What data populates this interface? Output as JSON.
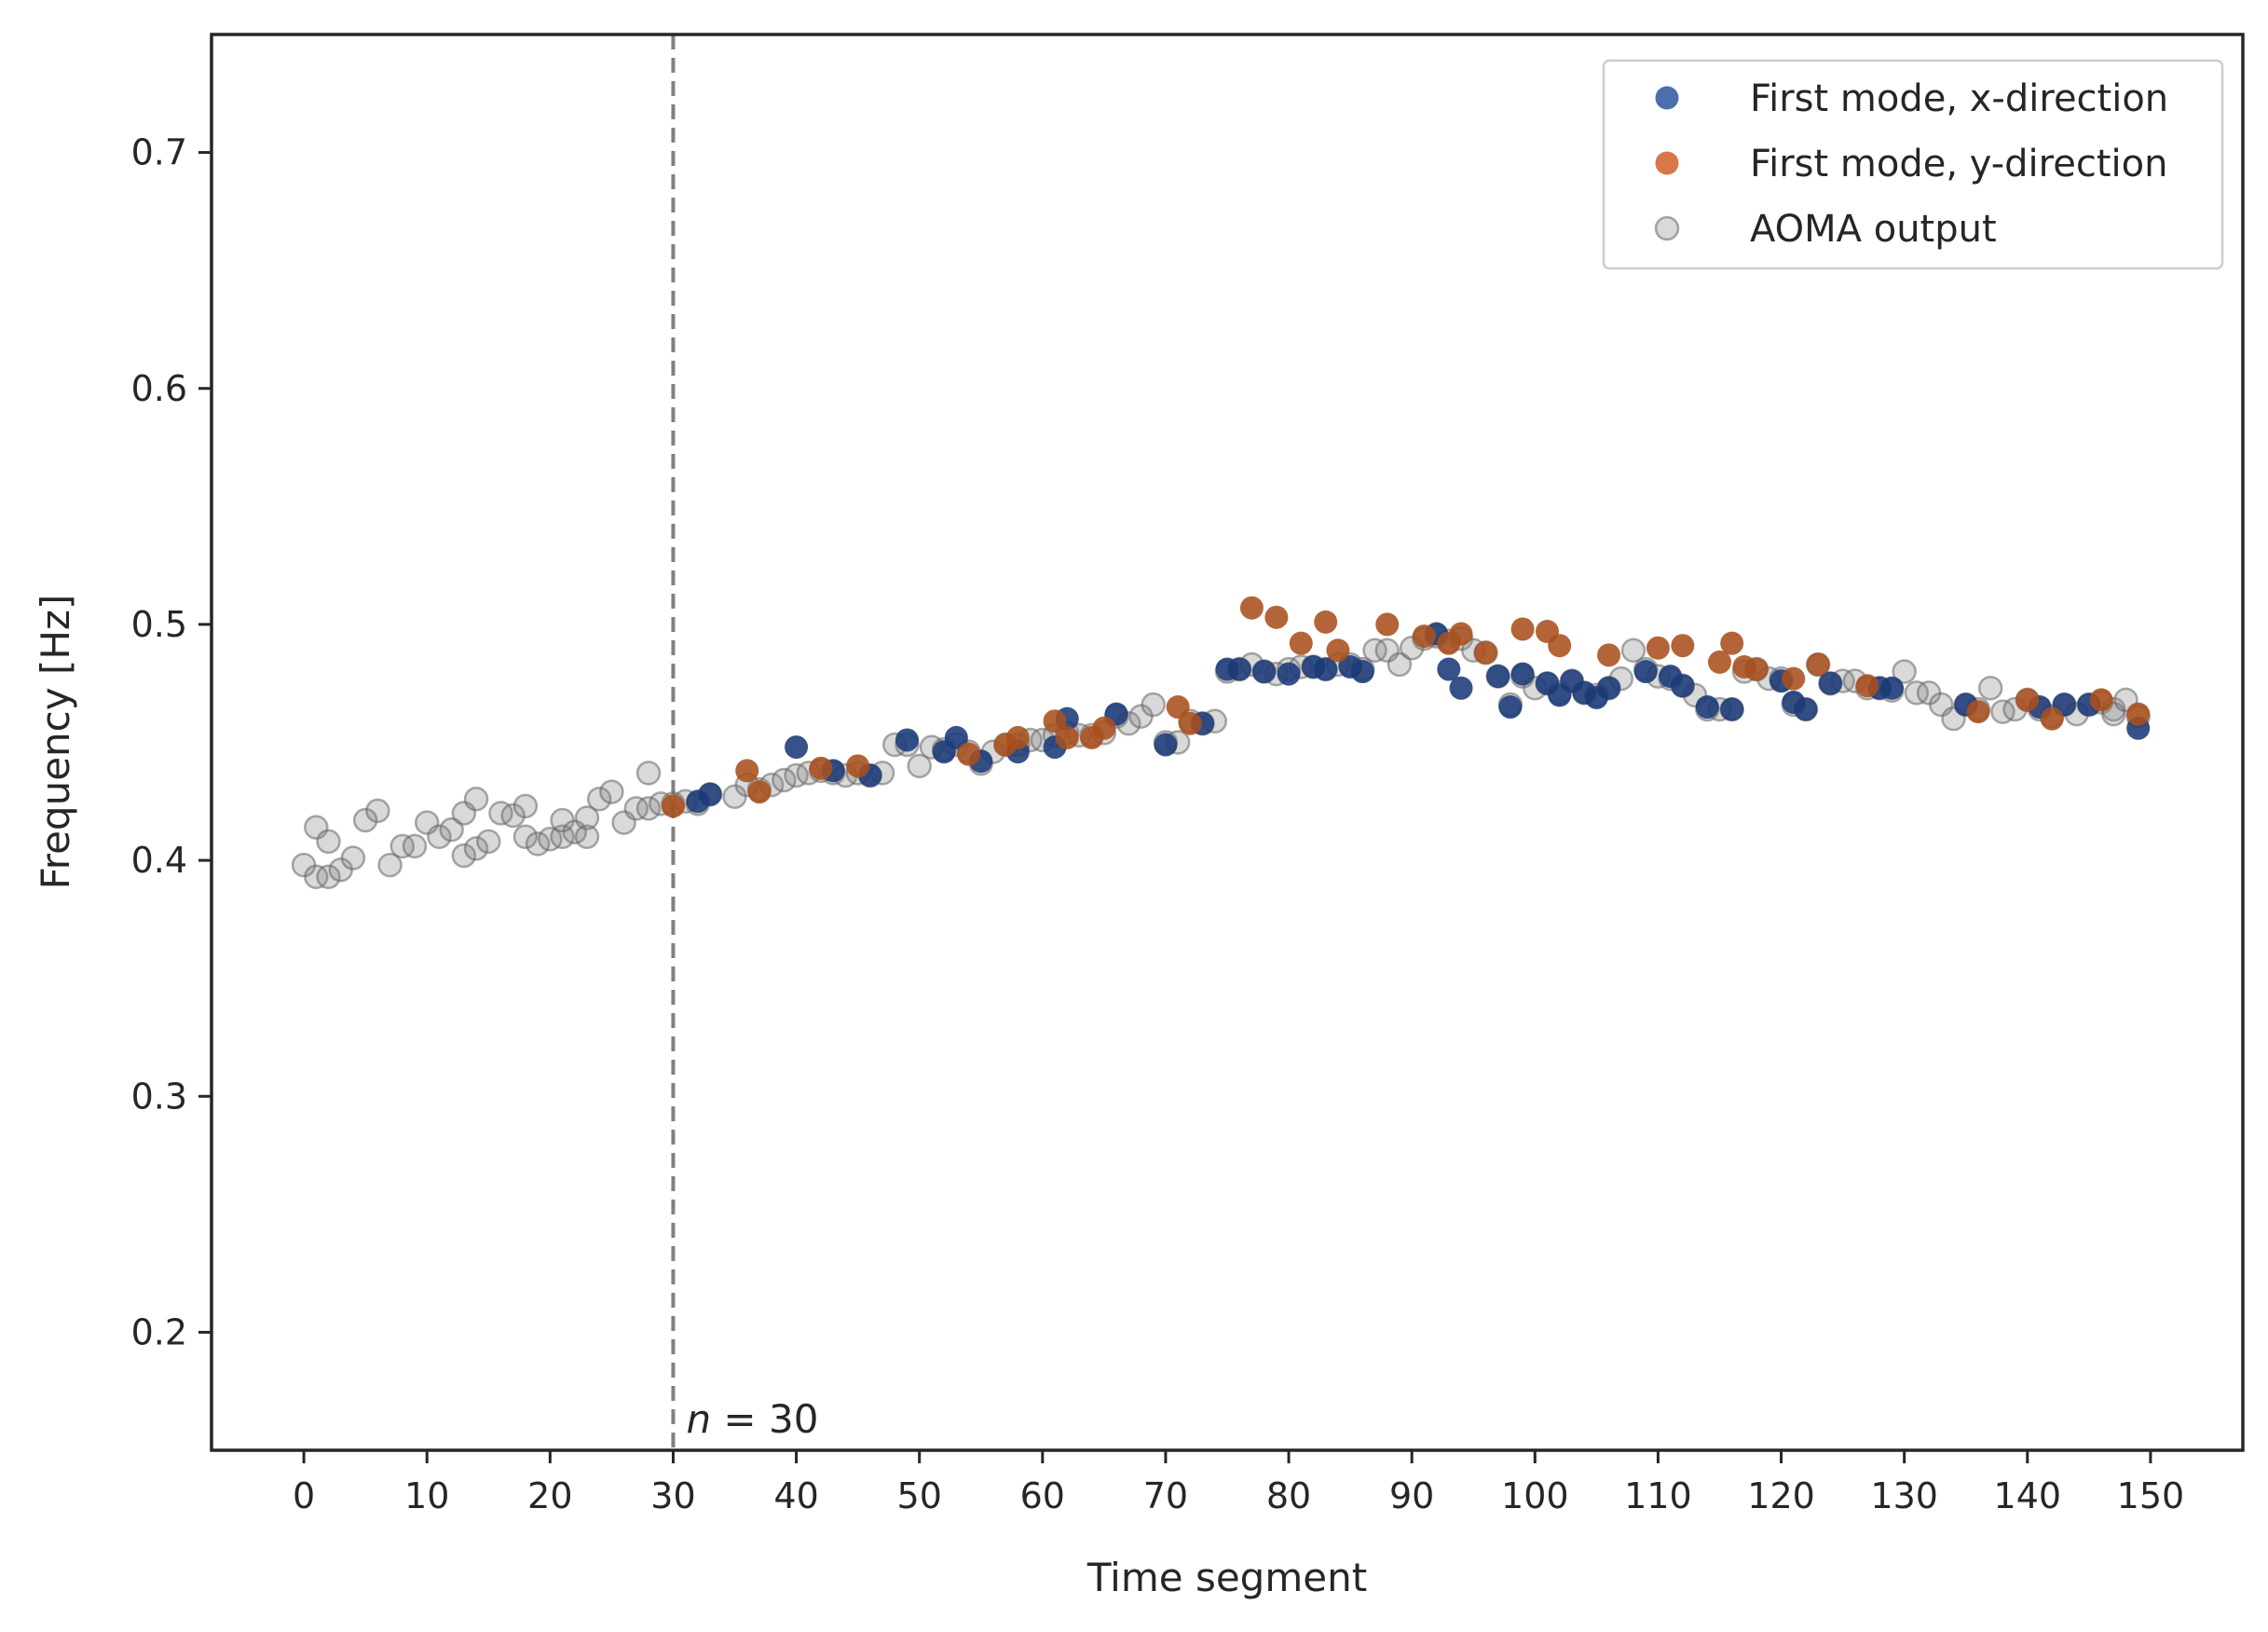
{
  "chart_data": {
    "type": "scatter",
    "xlabel": "Time segment",
    "ylabel": "Frequency [Hz]",
    "xlim": [
      -7.5,
      157.5
    ],
    "ylim": [
      0.15,
      0.75
    ],
    "xticks": [
      0,
      10,
      20,
      30,
      40,
      50,
      60,
      70,
      80,
      90,
      100,
      110,
      120,
      130,
      140,
      150
    ],
    "yticks": [
      0.2,
      0.3,
      0.4,
      0.5,
      0.6,
      0.7
    ],
    "xtick_labels": [
      "0",
      "10",
      "20",
      "30",
      "40",
      "50",
      "60",
      "70",
      "80",
      "90",
      "100",
      "110",
      "120",
      "130",
      "140",
      "150"
    ],
    "ytick_labels": [
      "0.2",
      "0.3",
      "0.4",
      "0.5",
      "0.6",
      "0.7"
    ],
    "grid": false,
    "legend_position": "top-right",
    "vline": {
      "x": 30,
      "style": "dashed",
      "color": "#808080"
    },
    "annotation": {
      "italic": "n",
      "rest": " = 30",
      "x": 30,
      "y": 0.163
    },
    "series": [
      {
        "name": "AOMA output",
        "color": "#808080",
        "style": "hollow",
        "points": [
          [
            0,
            0.398
          ],
          [
            1,
            0.414
          ],
          [
            1,
            0.393
          ],
          [
            2,
            0.408
          ],
          [
            2,
            0.393
          ],
          [
            3,
            0.396
          ],
          [
            4,
            0.401
          ],
          [
            5,
            0.417
          ],
          [
            6,
            0.421
          ],
          [
            7,
            0.398
          ],
          [
            8,
            0.406
          ],
          [
            9,
            0.406
          ],
          [
            10,
            0.416
          ],
          [
            11,
            0.41
          ],
          [
            12,
            0.413
          ],
          [
            13,
            0.402
          ],
          [
            13,
            0.42
          ],
          [
            14,
            0.426
          ],
          [
            14,
            0.405
          ],
          [
            15,
            0.408
          ],
          [
            16,
            0.42
          ],
          [
            17,
            0.419
          ],
          [
            18,
            0.423
          ],
          [
            18,
            0.41
          ],
          [
            19,
            0.407
          ],
          [
            20,
            0.409
          ],
          [
            21,
            0.41
          ],
          [
            21,
            0.417
          ],
          [
            22,
            0.412
          ],
          [
            23,
            0.41
          ],
          [
            23,
            0.418
          ],
          [
            24,
            0.426
          ],
          [
            25,
            0.429
          ],
          [
            26,
            0.416
          ],
          [
            27,
            0.422
          ],
          [
            28,
            0.422
          ],
          [
            28,
            0.437
          ],
          [
            29,
            0.424
          ],
          [
            30,
            0.424
          ],
          [
            31,
            0.425
          ],
          [
            32,
            0.424
          ],
          [
            33,
            0.428
          ],
          [
            35,
            0.427
          ],
          [
            36,
            0.432
          ],
          [
            37,
            0.43
          ],
          [
            38,
            0.432
          ],
          [
            39,
            0.434
          ],
          [
            40,
            0.436
          ],
          [
            41,
            0.437
          ],
          [
            42,
            0.438
          ],
          [
            43,
            0.437
          ],
          [
            44,
            0.436
          ],
          [
            45,
            0.437
          ],
          [
            46,
            0.436
          ],
          [
            47,
            0.437
          ],
          [
            48,
            0.449
          ],
          [
            49,
            0.449
          ],
          [
            50,
            0.44
          ],
          [
            51,
            0.448
          ],
          [
            52,
            0.447
          ],
          [
            53,
            0.449
          ],
          [
            54,
            0.446
          ],
          [
            55,
            0.441
          ],
          [
            56,
            0.446
          ],
          [
            57,
            0.449
          ],
          [
            58,
            0.449
          ],
          [
            59,
            0.451
          ],
          [
            60,
            0.451
          ],
          [
            61,
            0.453
          ],
          [
            62,
            0.454
          ],
          [
            63,
            0.453
          ],
          [
            64,
            0.453
          ],
          [
            65,
            0.454
          ],
          [
            66,
            0.461
          ],
          [
            67,
            0.458
          ],
          [
            68,
            0.461
          ],
          [
            69,
            0.466
          ],
          [
            70,
            0.45
          ],
          [
            71,
            0.45
          ],
          [
            72,
            0.459
          ],
          [
            73,
            0.458
          ],
          [
            74,
            0.459
          ],
          [
            75,
            0.48
          ],
          [
            76,
            0.481
          ],
          [
            77,
            0.483
          ],
          [
            78,
            0.48
          ],
          [
            79,
            0.479
          ],
          [
            80,
            0.481
          ],
          [
            81,
            0.482
          ],
          [
            82,
            0.482
          ],
          [
            83,
            0.481
          ],
          [
            84,
            0.483
          ],
          [
            85,
            0.483
          ],
          [
            86,
            0.481
          ],
          [
            87,
            0.489
          ],
          [
            88,
            0.489
          ],
          [
            89,
            0.483
          ],
          [
            90,
            0.49
          ],
          [
            91,
            0.494
          ],
          [
            92,
            0.495
          ],
          [
            93,
            0.493
          ],
          [
            94,
            0.494
          ],
          [
            95,
            0.489
          ],
          [
            96,
            0.488
          ],
          [
            97,
            0.478
          ],
          [
            98,
            0.466
          ],
          [
            99,
            0.478
          ],
          [
            100,
            0.473
          ],
          [
            101,
            0.475
          ],
          [
            102,
            0.471
          ],
          [
            103,
            0.476
          ],
          [
            104,
            0.471
          ],
          [
            105,
            0.47
          ],
          [
            106,
            0.473
          ],
          [
            107,
            0.477
          ],
          [
            108,
            0.489
          ],
          [
            109,
            0.481
          ],
          [
            110,
            0.478
          ],
          [
            111,
            0.477
          ],
          [
            112,
            0.474
          ],
          [
            113,
            0.47
          ],
          [
            114,
            0.464
          ],
          [
            115,
            0.464
          ],
          [
            116,
            0.464
          ],
          [
            117,
            0.48
          ],
          [
            118,
            0.481
          ],
          [
            119,
            0.477
          ],
          [
            120,
            0.477
          ],
          [
            121,
            0.466
          ],
          [
            122,
            0.464
          ],
          [
            123,
            0.483
          ],
          [
            124,
            0.475
          ],
          [
            125,
            0.476
          ],
          [
            126,
            0.476
          ],
          [
            127,
            0.473
          ],
          [
            128,
            0.473
          ],
          [
            129,
            0.472
          ],
          [
            130,
            0.48
          ],
          [
            131,
            0.471
          ],
          [
            132,
            0.471
          ],
          [
            133,
            0.466
          ],
          [
            134,
            0.46
          ],
          [
            135,
            0.466
          ],
          [
            136,
            0.464
          ],
          [
            137,
            0.473
          ],
          [
            138,
            0.463
          ],
          [
            139,
            0.464
          ],
          [
            140,
            0.468
          ],
          [
            141,
            0.464
          ],
          [
            142,
            0.461
          ],
          [
            143,
            0.466
          ],
          [
            144,
            0.462
          ],
          [
            145,
            0.466
          ],
          [
            146,
            0.467
          ],
          [
            147,
            0.464
          ],
          [
            147,
            0.462
          ],
          [
            148,
            0.468
          ],
          [
            149,
            0.461
          ]
        ]
      },
      {
        "name": "First mode, x-direction",
        "color": "#1a3a78",
        "style": "filled",
        "points": [
          [
            32,
            0.425
          ],
          [
            33,
            0.428
          ],
          [
            40,
            0.448
          ],
          [
            43,
            0.438
          ],
          [
            46,
            0.436
          ],
          [
            49,
            0.451
          ],
          [
            52,
            0.446
          ],
          [
            53,
            0.452
          ],
          [
            55,
            0.442
          ],
          [
            58,
            0.446
          ],
          [
            61,
            0.448
          ],
          [
            62,
            0.46
          ],
          [
            66,
            0.462
          ],
          [
            70,
            0.449
          ],
          [
            73,
            0.458
          ],
          [
            75,
            0.481
          ],
          [
            76,
            0.481
          ],
          [
            78,
            0.48
          ],
          [
            80,
            0.479
          ],
          [
            82,
            0.482
          ],
          [
            83,
            0.481
          ],
          [
            85,
            0.482
          ],
          [
            86,
            0.48
          ],
          [
            92,
            0.496
          ],
          [
            93,
            0.481
          ],
          [
            94,
            0.473
          ],
          [
            98,
            0.465
          ],
          [
            99,
            0.479
          ],
          [
            97,
            0.478
          ],
          [
            101,
            0.475
          ],
          [
            102,
            0.47
          ],
          [
            103,
            0.476
          ],
          [
            104,
            0.471
          ],
          [
            105,
            0.469
          ],
          [
            106,
            0.473
          ],
          [
            109,
            0.48
          ],
          [
            111,
            0.478
          ],
          [
            112,
            0.474
          ],
          [
            114,
            0.465
          ],
          [
            116,
            0.464
          ],
          [
            120,
            0.476
          ],
          [
            121,
            0.467
          ],
          [
            122,
            0.464
          ],
          [
            124,
            0.475
          ],
          [
            128,
            0.473
          ],
          [
            129,
            0.473
          ],
          [
            135,
            0.466
          ],
          [
            141,
            0.465
          ],
          [
            143,
            0.466
          ],
          [
            145,
            0.466
          ],
          [
            149,
            0.456
          ]
        ]
      },
      {
        "name": "First mode, y-direction",
        "color": "#a8501e",
        "style": "filled",
        "points": [
          [
            30,
            0.423
          ],
          [
            36,
            0.438
          ],
          [
            37,
            0.429
          ],
          [
            42,
            0.439
          ],
          [
            45,
            0.44
          ],
          [
            54,
            0.445
          ],
          [
            57,
            0.449
          ],
          [
            58,
            0.452
          ],
          [
            61,
            0.459
          ],
          [
            62,
            0.452
          ],
          [
            64,
            0.452
          ],
          [
            65,
            0.456
          ],
          [
            71,
            0.465
          ],
          [
            72,
            0.458
          ],
          [
            77,
            0.507
          ],
          [
            79,
            0.503
          ],
          [
            81,
            0.492
          ],
          [
            83,
            0.501
          ],
          [
            84,
            0.489
          ],
          [
            88,
            0.5
          ],
          [
            91,
            0.495
          ],
          [
            93,
            0.492
          ],
          [
            94,
            0.496
          ],
          [
            96,
            0.488
          ],
          [
            99,
            0.498
          ],
          [
            101,
            0.497
          ],
          [
            102,
            0.491
          ],
          [
            106,
            0.487
          ],
          [
            110,
            0.49
          ],
          [
            112,
            0.491
          ],
          [
            115,
            0.484
          ],
          [
            116,
            0.492
          ],
          [
            117,
            0.482
          ],
          [
            118,
            0.481
          ],
          [
            121,
            0.477
          ],
          [
            123,
            0.483
          ],
          [
            127,
            0.474
          ],
          [
            136,
            0.463
          ],
          [
            140,
            0.468
          ],
          [
            142,
            0.46
          ],
          [
            146,
            0.468
          ],
          [
            149,
            0.462
          ]
        ]
      }
    ],
    "legend_order": [
      "First mode, x-direction",
      "First mode, y-direction",
      "AOMA output"
    ]
  }
}
